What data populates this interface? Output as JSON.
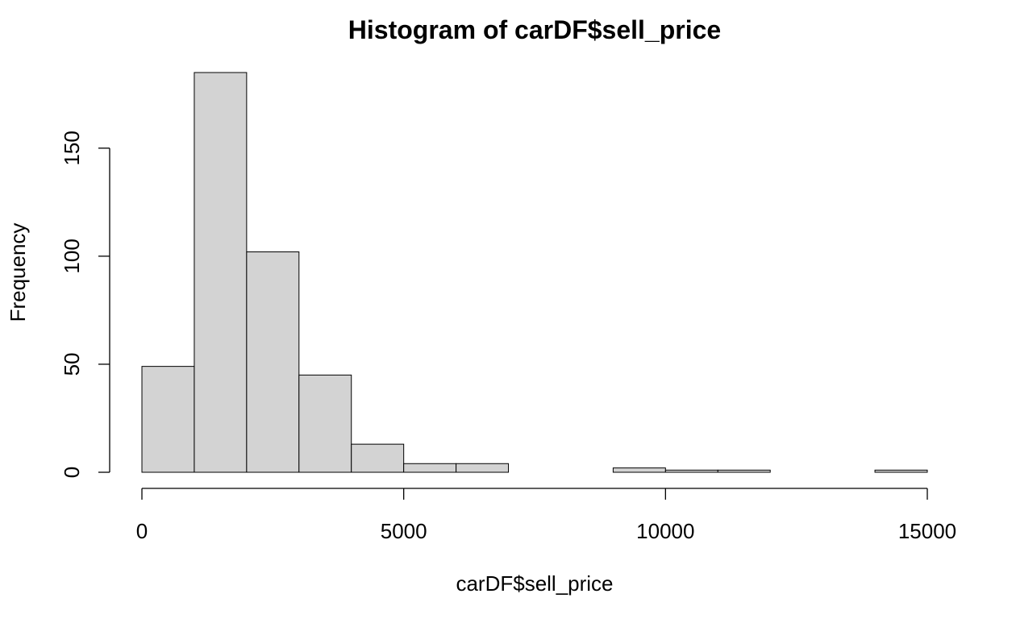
{
  "chart_data": {
    "type": "bar",
    "title": "Histogram of carDF$sell_price",
    "xlabel": "carDF$sell_price",
    "ylabel": "Frequency",
    "bin_edges": [
      0,
      1000,
      2000,
      3000,
      4000,
      5000,
      6000,
      7000,
      8000,
      9000,
      10000,
      11000,
      12000,
      13000,
      14000,
      15000
    ],
    "values": [
      49,
      185,
      102,
      45,
      13,
      4,
      4,
      0,
      0,
      2,
      1,
      1,
      0,
      0,
      1
    ],
    "xlim": [
      0,
      15000
    ],
    "ylim": [
      0,
      185
    ],
    "x_ticks": [
      0,
      5000,
      10000,
      15000
    ],
    "y_ticks": [
      0,
      50,
      100,
      150
    ],
    "x_tick_labels": [
      "0",
      "5000",
      "10000",
      "15000"
    ],
    "y_tick_labels": [
      "0",
      "50",
      "100",
      "150"
    ],
    "bar_fill": "#d3d3d3",
    "bar_stroke": "#000000",
    "grid": false,
    "legend": "none"
  }
}
